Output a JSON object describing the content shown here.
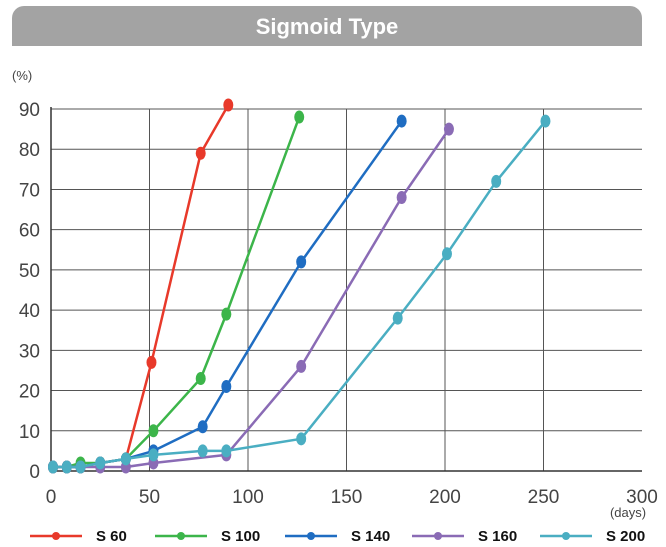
{
  "chart_data": {
    "type": "line",
    "title": "Sigmoid Type",
    "y_unit": "(%)",
    "x_unit": "(days)",
    "xlim": [
      0,
      300
    ],
    "ylim": [
      0,
      90
    ],
    "x_ticks": [
      0,
      50,
      100,
      150,
      200,
      250,
      300
    ],
    "y_ticks": [
      0,
      10,
      20,
      30,
      40,
      50,
      60,
      70,
      80,
      90
    ],
    "grid": true,
    "legend_position": "bottom",
    "series": [
      {
        "name": "S 60",
        "color": "#e8392a",
        "x": [
          1,
          8,
          15,
          25,
          38,
          51,
          76,
          90
        ],
        "y": [
          1,
          1,
          1,
          2,
          3,
          27,
          79,
          91
        ]
      },
      {
        "name": "S 100",
        "color": "#3cb54a",
        "x": [
          1,
          8,
          15,
          25,
          38,
          52,
          76,
          89,
          126
        ],
        "y": [
          1,
          1,
          2,
          2,
          3,
          10,
          23,
          39,
          88
        ]
      },
      {
        "name": "S 140",
        "color": "#1f6dc2",
        "x": [
          1,
          8,
          15,
          25,
          38,
          52,
          77,
          89,
          127,
          178
        ],
        "y": [
          1,
          1,
          1,
          2,
          3,
          5,
          11,
          21,
          52,
          87
        ]
      },
      {
        "name": "S 160",
        "color": "#8a6bb5",
        "x": [
          1,
          8,
          15,
          25,
          38,
          52,
          89,
          127,
          178,
          202
        ],
        "y": [
          1,
          1,
          1,
          1,
          1,
          2,
          4,
          26,
          68,
          85
        ]
      },
      {
        "name": "S 200",
        "color": "#4aaec2",
        "x": [
          1,
          8,
          15,
          25,
          38,
          52,
          77,
          89,
          127,
          176,
          201,
          226,
          251
        ],
        "y": [
          1,
          1,
          1,
          2,
          3,
          4,
          5,
          5,
          8,
          38,
          54,
          72,
          87
        ]
      }
    ]
  }
}
